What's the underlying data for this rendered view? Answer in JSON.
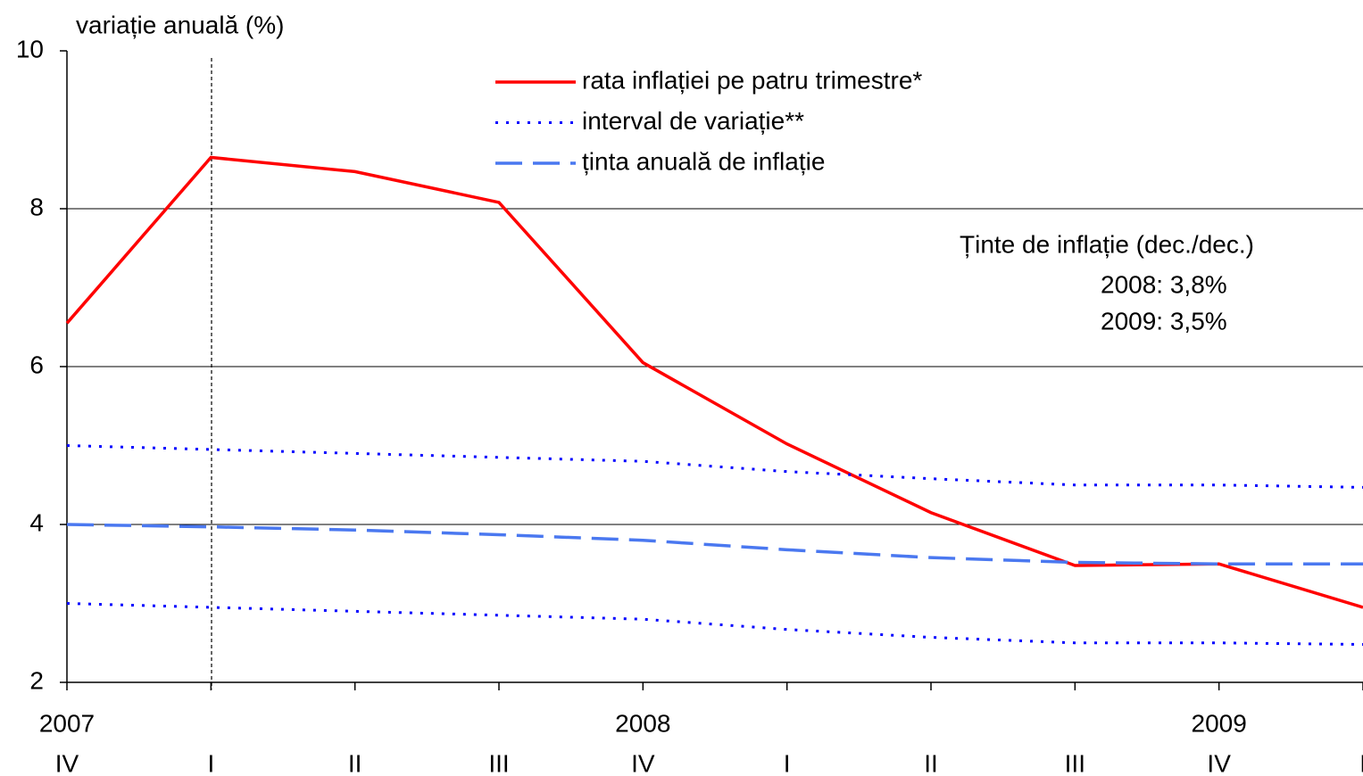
{
  "chart_data": {
    "type": "line",
    "title": "variație anuală (%)",
    "categories": [
      "IV",
      "I",
      "II",
      "III",
      "IV",
      "I",
      "II",
      "III",
      "IV",
      "I"
    ],
    "years": [
      "2007",
      null,
      null,
      null,
      "2008",
      null,
      null,
      null,
      "2009",
      null
    ],
    "series": [
      {
        "name": "rata inflației pe patru trimestre*",
        "color": "#ff0000",
        "style": "solid",
        "values": [
          6.55,
          8.65,
          8.47,
          8.08,
          6.05,
          5.02,
          4.15,
          3.48,
          3.5,
          2.95
        ]
      },
      {
        "name": "interval de variație**",
        "color": "#0000ff",
        "style": "dotted",
        "values": [
          5.0,
          4.95,
          4.9,
          4.85,
          4.8,
          4.67,
          4.58,
          4.5,
          4.5,
          4.47
        ]
      },
      {
        "name": "ținta anuală de inflație",
        "color": "#4a78f0",
        "style": "dashed",
        "values": [
          4.0,
          3.97,
          3.93,
          3.87,
          3.8,
          3.68,
          3.58,
          3.52,
          3.5,
          3.5
        ]
      },
      {
        "color": "#0000ff",
        "style": "dotted",
        "values": [
          3.0,
          2.95,
          2.9,
          2.85,
          2.8,
          2.67,
          2.57,
          2.5,
          2.5,
          2.48
        ]
      }
    ],
    "annotations": [
      "Ținte de inflație (dec./dec.)",
      "2008: 3,8%",
      "2009: 3,5%"
    ],
    "ylim": [
      2,
      10
    ],
    "yticks": [
      2,
      4,
      6,
      8,
      10
    ],
    "grid": true
  }
}
